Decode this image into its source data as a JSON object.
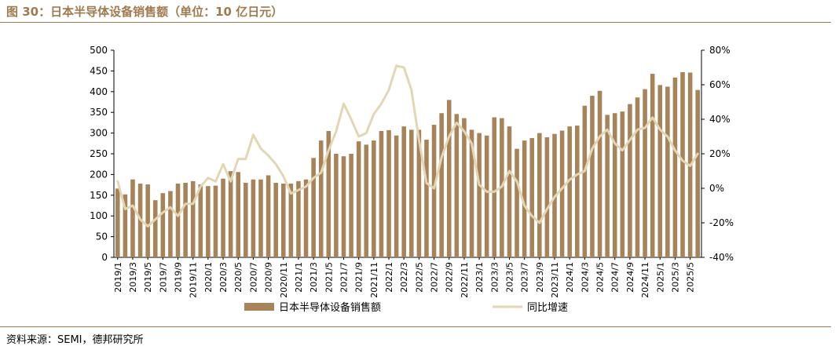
{
  "header": {
    "title": "图 30：日本半导体设备销售额（单位：10 亿日元）"
  },
  "footer": {
    "source": "资料来源：SEMI，德邦研究所"
  },
  "colors": {
    "bar": "#A68358",
    "line": "#E3D6B5",
    "accent": "#9E7B4E",
    "axis": "#000000"
  },
  "chart_data": {
    "type": "bar",
    "title": "",
    "xlabel": "",
    "ylabel": "",
    "ylim": [
      0,
      500
    ],
    "y2lim": [
      -40,
      80
    ],
    "y_ticks": [
      "0",
      "50",
      "100",
      "150",
      "200",
      "250",
      "300",
      "350",
      "400",
      "450",
      "500"
    ],
    "y2_ticks": [
      "-40%",
      "-20%",
      "0%",
      "20%",
      "40%",
      "60%",
      "80%"
    ],
    "tick_labels": [
      "2019/1",
      "2019/3",
      "2019/5",
      "2019/7",
      "2019/9",
      "2019/11",
      "2020/1",
      "2020/3",
      "2020/5",
      "2020/7",
      "2020/9",
      "2020/11",
      "2021/1",
      "2021/3",
      "2021/5",
      "2021/7",
      "2021/9",
      "2021/11",
      "2022/1",
      "2022/3",
      "2022/5",
      "2022/7",
      "2022/9",
      "2022/11",
      "2023/1",
      "2023/3",
      "2023/5",
      "2023/7",
      "2023/9",
      "2023/11",
      "2024/1",
      "2024/3",
      "2024/5",
      "2024/7",
      "2024/9",
      "2024/11",
      "2025/1",
      "2025/3",
      "2025/5"
    ],
    "legend_position": "bottom",
    "series": [
      {
        "name": "日本半导体设备销售额",
        "type": "bar",
        "axis": "left",
        "values": [
          166,
          152,
          188,
          178,
          176,
          138,
          155,
          160,
          178,
          180,
          184,
          176,
          172,
          173,
          190,
          208,
          206,
          180,
          188,
          188,
          198,
          180,
          178,
          178,
          184,
          188,
          240,
          282,
          305,
          250,
          244,
          250,
          280,
          272,
          282,
          305,
          307,
          294,
          316,
          308,
          308,
          284,
          320,
          348,
          380,
          346,
          336,
          308,
          300,
          294,
          338,
          336,
          316,
          262,
          282,
          288,
          300,
          290,
          298,
          306,
          316,
          318,
          366,
          390,
          402,
          344,
          348,
          352,
          370,
          386,
          406,
          443,
          416,
          412,
          434,
          447,
          446,
          404
        ]
      },
      {
        "name": "同比增速",
        "type": "line",
        "axis": "right",
        "values": [
          4,
          -12,
          -10,
          -18,
          -22,
          -18,
          -14,
          -11,
          -16,
          -9,
          -9,
          1,
          6,
          4,
          14,
          4,
          17,
          17,
          31,
          23,
          19,
          14,
          7,
          -3,
          -1,
          1,
          6,
          9,
          22,
          33,
          49,
          40,
          30,
          32,
          43,
          49,
          57,
          71,
          70,
          57,
          28,
          3,
          0,
          18,
          30,
          38,
          33,
          26,
          2,
          -2,
          -2,
          1,
          10,
          4,
          -10,
          -16,
          -20,
          -12,
          -5,
          0,
          5,
          8,
          10,
          23,
          30,
          34,
          26,
          22,
          28,
          34,
          35,
          41,
          34,
          30,
          22,
          16,
          13,
          20
        ]
      }
    ]
  }
}
